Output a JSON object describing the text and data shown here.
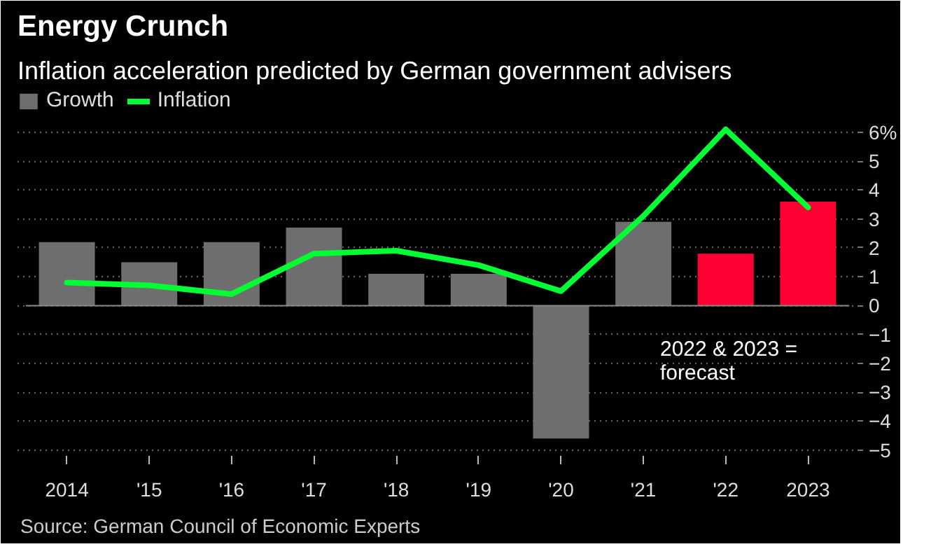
{
  "chart_data": {
    "type": "bar",
    "title": "Energy Crunch",
    "subtitle": "Inflation acceleration predicted by German government advisers",
    "categories": [
      "2014",
      "'15",
      "'16",
      "'17",
      "'18",
      "'19",
      "'20",
      "'21",
      "'22",
      "2023"
    ],
    "series": [
      {
        "name": "Growth",
        "color": "#6e6e6e",
        "colors": [
          "#6e6e6e",
          "#6e6e6e",
          "#6e6e6e",
          "#6e6e6e",
          "#6e6e6e",
          "#6e6e6e",
          "#6e6e6e",
          "#6e6e6e",
          "#ff0033",
          "#ff0033"
        ],
        "values": [
          2.2,
          1.5,
          2.2,
          2.7,
          1.1,
          1.1,
          -4.6,
          2.9,
          1.8,
          3.6
        ]
      },
      {
        "name": "Inflation",
        "type": "line",
        "color": "#00ff33",
        "values": [
          0.8,
          0.7,
          0.4,
          1.8,
          1.9,
          1.4,
          0.5,
          3.1,
          6.1,
          3.4
        ]
      }
    ],
    "ylim": [
      -5.2,
      7.5
    ],
    "yticks": [
      {
        "value": 6,
        "label": "6%"
      },
      5,
      4,
      3,
      2,
      1,
      0,
      -1,
      -2,
      -3,
      -4,
      -5
    ],
    "grid": "y",
    "legend": "top left",
    "annotations": [
      "2022 & 2023 =\nforecast",
      "Source: German Council of Economic Experts"
    ]
  }
}
